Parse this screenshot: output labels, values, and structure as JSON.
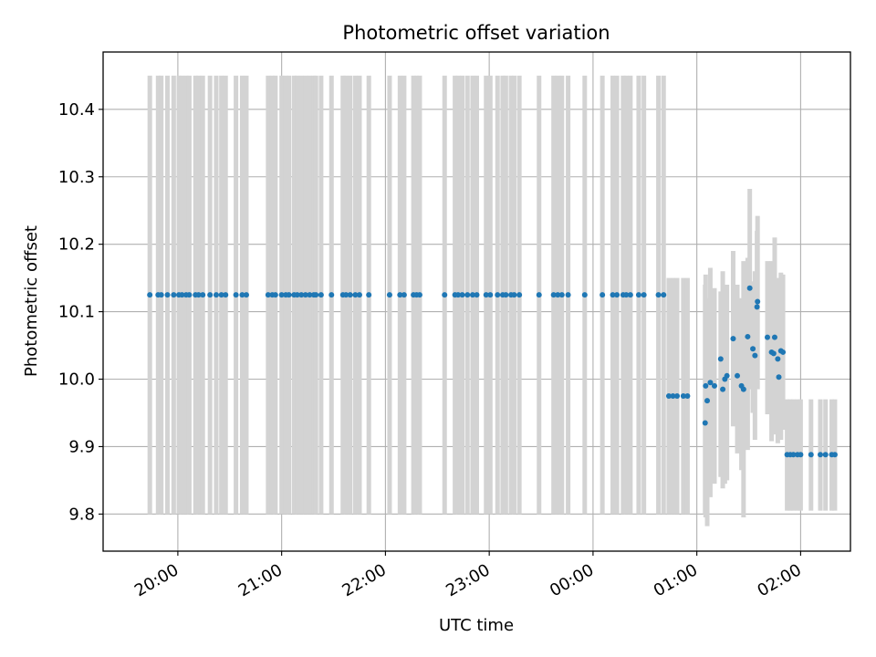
{
  "chart_data": {
    "type": "scatter",
    "title": "Photometric offset variation",
    "xlabel": "UTC time",
    "ylabel": "Photometric offset",
    "x_unit": "hours (UTC)",
    "xlim": [
      19.28,
      26.48
    ],
    "ylim": [
      9.745,
      10.485
    ],
    "x_ticks": [
      {
        "value": 20,
        "label": "20:00"
      },
      {
        "value": 21,
        "label": "21:00"
      },
      {
        "value": 22,
        "label": "22:00"
      },
      {
        "value": 23,
        "label": "23:00"
      },
      {
        "value": 24,
        "label": "00:00"
      },
      {
        "value": 25,
        "label": "01:00"
      },
      {
        "value": 26,
        "label": "02:00"
      }
    ],
    "y_ticks": [
      {
        "value": 9.8,
        "label": "9.8"
      },
      {
        "value": 9.9,
        "label": "9.9"
      },
      {
        "value": 10.0,
        "label": "10.0"
      },
      {
        "value": 10.1,
        "label": "10.1"
      },
      {
        "value": 10.2,
        "label": "10.2"
      },
      {
        "value": 10.3,
        "label": "10.3"
      },
      {
        "value": 10.4,
        "label": "10.4"
      }
    ],
    "grid": true,
    "marker_color": "#1f77b4",
    "errorbar_color": "#d3d3d3",
    "segments": [
      {
        "y": 10.125,
        "lo": 9.8,
        "hi": 10.45,
        "x": [
          19.73,
          19.81,
          19.84,
          19.9,
          19.96,
          20.01,
          20.04,
          20.08,
          20.11,
          20.17,
          20.2,
          20.24,
          20.31,
          20.37,
          20.42,
          20.46,
          20.56,
          20.62,
          20.66,
          20.87,
          20.91,
          20.94,
          21.0,
          21.04,
          21.07,
          21.12,
          21.15,
          21.19,
          21.23,
          21.27,
          21.31,
          21.33,
          21.38,
          21.48,
          21.59,
          21.62,
          21.66,
          21.71,
          21.75,
          21.84,
          22.04,
          22.14,
          22.18,
          22.27,
          22.3,
          22.33,
          22.57,
          22.67,
          22.7,
          22.74,
          22.79,
          22.84,
          22.88,
          22.97,
          23.01,
          23.08,
          23.13,
          23.16,
          23.21,
          23.24,
          23.29,
          23.48,
          23.62,
          23.66,
          23.7,
          23.76,
          23.92,
          24.09,
          24.19,
          24.23,
          24.29,
          24.32,
          24.36,
          24.44,
          24.49,
          24.63,
          24.68
        ]
      },
      {
        "y": 9.975,
        "lo": 9.8,
        "hi": 10.15,
        "x": [
          24.73,
          24.77,
          24.81,
          24.87,
          24.91
        ]
      }
    ],
    "points": [
      {
        "x": 25.08,
        "y": 9.935,
        "lo": 9.8,
        "hi": 10.14
      },
      {
        "x": 25.085,
        "y": 9.99,
        "lo": 9.795,
        "hi": 10.155
      },
      {
        "x": 25.1,
        "y": 9.968,
        "lo": 9.782,
        "hi": 10.12
      },
      {
        "x": 25.13,
        "y": 9.995,
        "lo": 9.825,
        "hi": 10.165
      },
      {
        "x": 25.17,
        "y": 9.99,
        "lo": 9.845,
        "hi": 10.135
      },
      {
        "x": 25.23,
        "y": 10.03,
        "lo": 9.855,
        "hi": 10.13
      },
      {
        "x": 25.25,
        "y": 9.985,
        "lo": 9.838,
        "hi": 10.16
      },
      {
        "x": 25.27,
        "y": 10.0,
        "lo": 9.845,
        "hi": 10.11
      },
      {
        "x": 25.29,
        "y": 10.005,
        "lo": 9.85,
        "hi": 10.14
      },
      {
        "x": 25.35,
        "y": 10.06,
        "lo": 9.93,
        "hi": 10.19
      },
      {
        "x": 25.39,
        "y": 10.005,
        "lo": 9.89,
        "hi": 10.14
      },
      {
        "x": 25.43,
        "y": 9.99,
        "lo": 9.865,
        "hi": 10.12
      },
      {
        "x": 25.45,
        "y": 9.985,
        "lo": 9.795,
        "hi": 10.175
      },
      {
        "x": 25.49,
        "y": 10.063,
        "lo": 9.895,
        "hi": 10.18
      },
      {
        "x": 25.51,
        "y": 10.135,
        "lo": 9.985,
        "hi": 10.282
      },
      {
        "x": 25.54,
        "y": 10.045,
        "lo": 9.95,
        "hi": 10.145
      },
      {
        "x": 25.56,
        "y": 10.035,
        "lo": 9.91,
        "hi": 10.16
      },
      {
        "x": 25.585,
        "y": 10.115,
        "lo": 9.985,
        "hi": 10.242
      },
      {
        "x": 25.58,
        "y": 10.107,
        "lo": 10.0,
        "hi": 10.22
      },
      {
        "x": 25.68,
        "y": 10.062,
        "lo": 9.948,
        "hi": 10.175
      },
      {
        "x": 25.72,
        "y": 10.04,
        "lo": 9.908,
        "hi": 10.175
      },
      {
        "x": 25.75,
        "y": 10.062,
        "lo": 9.918,
        "hi": 10.21
      },
      {
        "x": 25.78,
        "y": 10.03,
        "lo": 9.905,
        "hi": 10.15
      },
      {
        "x": 25.79,
        "y": 10.003,
        "lo": 9.92,
        "hi": 10.09
      },
      {
        "x": 25.81,
        "y": 10.042,
        "lo": 9.91,
        "hi": 10.158
      },
      {
        "x": 25.74,
        "y": 10.038,
        "lo": 9.935,
        "hi": 10.15
      },
      {
        "x": 25.83,
        "y": 10.04,
        "lo": 9.925,
        "hi": 10.155
      }
    ],
    "segment_low": {
      "y": 9.888,
      "lo": 9.805,
      "hi": 9.97,
      "x": [
        25.87,
        25.9,
        25.93,
        25.97,
        26.0,
        26.1,
        26.19,
        26.24,
        26.3,
        26.33
      ]
    }
  }
}
